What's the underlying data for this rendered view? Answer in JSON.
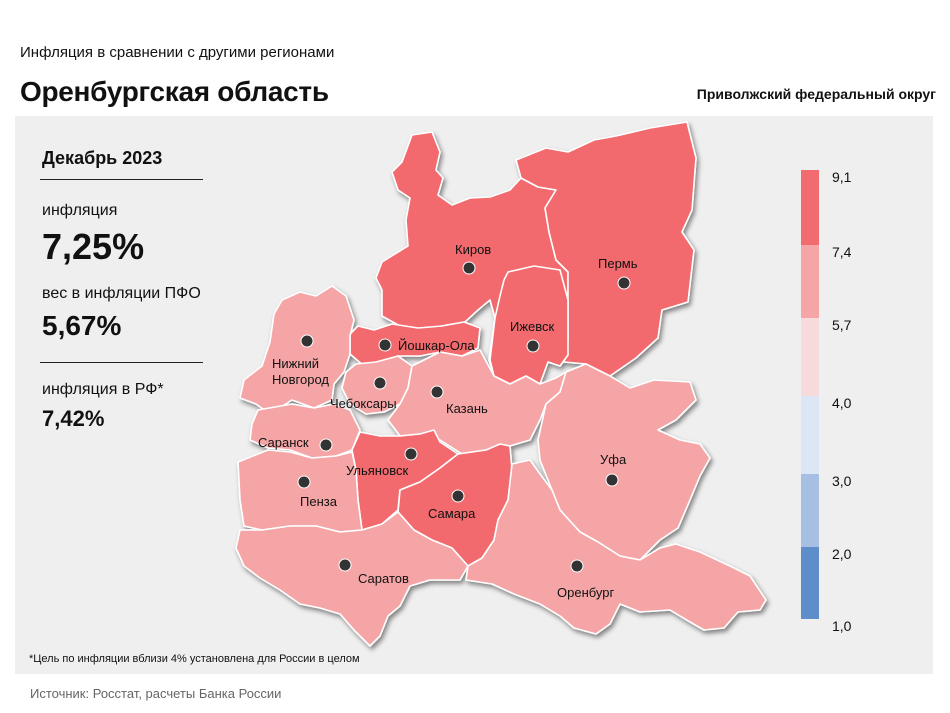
{
  "header": {
    "subtitle": "Инфляция  в сравнении  с другими  регионами",
    "title": "Оренбургская область",
    "district": "Приволжский федеральный округ"
  },
  "stats": {
    "period": "Декабрь 2023",
    "inflation_label": "инфляция",
    "inflation_value": "7,25%",
    "weight_label": "вес в инфляции  ПФО",
    "weight_value": "5,67%",
    "rf_label": "инфляция  в РФ*",
    "rf_value": "7,42%"
  },
  "legend": {
    "thresholds": [
      "9,1",
      "7,4",
      "5,7",
      "4,0",
      "3,0",
      "2,0",
      "1,0"
    ],
    "colors": [
      "#f26b6e",
      "#f5a5a6",
      "#f7dadc",
      "#dde6f4",
      "#a6bfe3",
      "#5d8ec9"
    ]
  },
  "regions": {
    "kirov": {
      "name": "Киров",
      "color": "#f26b6e"
    },
    "perm": {
      "name": "Пермь",
      "color": "#f26b6e"
    },
    "izhevsk": {
      "name": "Ижевск",
      "color": "#f26b6e"
    },
    "yoshkar_ola": {
      "name": "Йошкар-Ола",
      "color": "#f26b6e"
    },
    "nizhny_novgorod": {
      "name": "Нижний Новгород",
      "line1": "Нижний",
      "line2": "Новгород",
      "color": "#f5a5a6"
    },
    "cheboksary": {
      "name": "Чебоксары",
      "color": "#f5a5a6"
    },
    "kazan": {
      "name": "Казань",
      "color": "#f5a5a6"
    },
    "saransk": {
      "name": "Саранск",
      "color": "#f5a5a6"
    },
    "ulyanovsk": {
      "name": "Ульяновск",
      "color": "#f26b6e"
    },
    "penza": {
      "name": "Пенза",
      "color": "#f5a5a6"
    },
    "samara": {
      "name": "Самара",
      "color": "#f26b6e"
    },
    "ufa": {
      "name": "Уфа",
      "color": "#f5a5a6"
    },
    "saratov": {
      "name": "Саратов",
      "color": "#f5a5a6"
    },
    "orenburg": {
      "name": "Оренбург",
      "color": "#f5a5a6"
    }
  },
  "footnote": "*Цель по инфляции вблизи 4% установлена для России в целом",
  "source": "Источник: Росстат, расчеты Банка России"
}
